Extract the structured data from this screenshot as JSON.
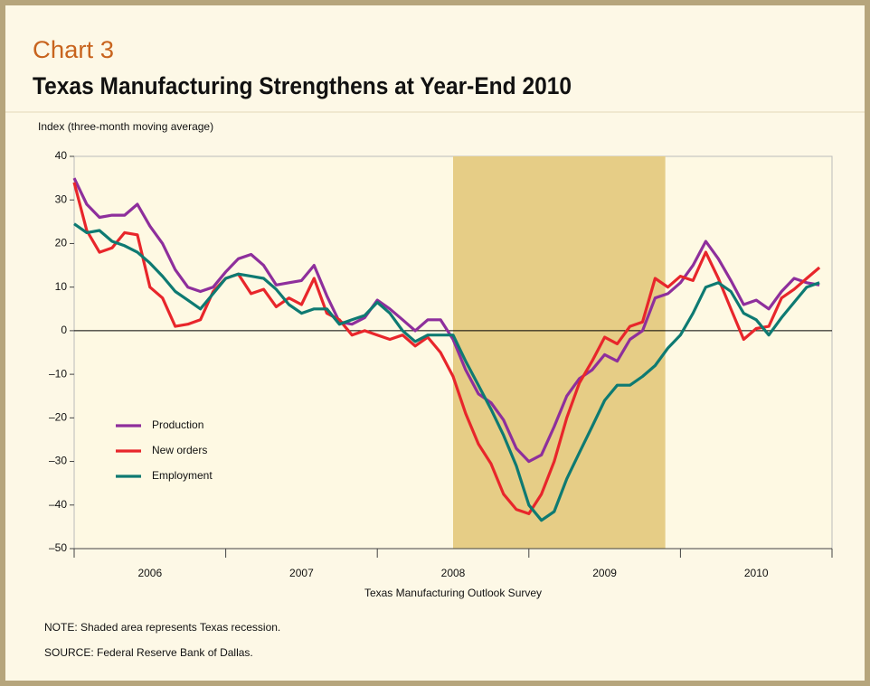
{
  "chart_data": {
    "type": "line",
    "label": "Chart 3",
    "title": "Texas Manufacturing Strengthens at Year-End 2010",
    "ylabel": "Index (three-month moving average)",
    "xlabel": "Texas Manufacturing Outlook Survey",
    "notes": [
      "NOTE: Shaded area represents Texas recession.",
      "SOURCE: Federal Reserve Bank of Dallas."
    ],
    "shaded_range": [
      2008.5,
      2009.9
    ],
    "shade_color": "#e6cd86",
    "xlim": [
      2006,
      2011
    ],
    "xticks": [
      {
        "value": 2006.5,
        "label": "2006"
      },
      {
        "value": 2007.5,
        "label": "2007"
      },
      {
        "value": 2008.5,
        "label": "2008"
      },
      {
        "value": 2009.5,
        "label": "2009"
      },
      {
        "value": 2010.5,
        "label": "2010"
      }
    ],
    "ylim": [
      -50,
      40
    ],
    "yticks": [
      {
        "value": -50,
        "label": "–50"
      },
      {
        "value": -40,
        "label": "–40"
      },
      {
        "value": -30,
        "label": "–30"
      },
      {
        "value": -20,
        "label": "–20"
      },
      {
        "value": -10,
        "label": "–10"
      },
      0,
      10,
      20,
      30,
      40
    ],
    "legend": "lower left",
    "x": [
      2006,
      2006.083,
      2006.167,
      2006.25,
      2006.333,
      2006.417,
      2006.5,
      2006.583,
      2006.667,
      2006.75,
      2006.833,
      2006.917,
      2007,
      2007.083,
      2007.167,
      2007.25,
      2007.333,
      2007.417,
      2007.5,
      2007.583,
      2007.667,
      2007.75,
      2007.833,
      2007.917,
      2008,
      2008.083,
      2008.167,
      2008.25,
      2008.333,
      2008.417,
      2008.5,
      2008.583,
      2008.667,
      2008.75,
      2008.833,
      2008.917,
      2009,
      2009.083,
      2009.167,
      2009.25,
      2009.333,
      2009.417,
      2009.5,
      2009.583,
      2009.667,
      2009.75,
      2009.833,
      2009.917,
      2010,
      2010.083,
      2010.167,
      2010.25,
      2010.333,
      2010.417,
      2010.5,
      2010.583,
      2010.667,
      2010.75,
      2010.833,
      2010.917
    ],
    "series": [
      {
        "name": "Production",
        "color": "#8e2f9c",
        "values": [
          35,
          29,
          26,
          26.5,
          26.5,
          29,
          24,
          20,
          14,
          10,
          9,
          10,
          13.5,
          16.5,
          17.5,
          15,
          10.5,
          11,
          11.5,
          15,
          8,
          2,
          1.5,
          3,
          7,
          5,
          2.5,
          0,
          2.5,
          2.5,
          -2,
          -9,
          -14.5,
          -16.5,
          -20.5,
          -27,
          -30,
          -28.5,
          -22,
          -15,
          -11,
          -9,
          -5.5,
          -7,
          -2,
          0,
          7.5,
          8.5,
          11,
          15,
          20.5,
          16.5,
          11.5,
          6,
          7,
          5,
          9,
          12,
          11,
          10.5
        ]
      },
      {
        "name": "New orders",
        "color": "#e8262b",
        "values": [
          34,
          23,
          18,
          19,
          22.5,
          22,
          10,
          7.5,
          1,
          1.5,
          2.5,
          9,
          12,
          13,
          8.5,
          9.5,
          5.5,
          7.5,
          6,
          12,
          4,
          2.5,
          -1,
          0,
          -1,
          -2,
          -1,
          -3.5,
          -1.5,
          -5,
          -10.5,
          -19,
          -26,
          -30.5,
          -37.5,
          -41,
          -42,
          -37.5,
          -30,
          -20,
          -12,
          -7,
          -1.5,
          -3,
          1,
          2,
          12,
          10,
          12.5,
          11.5,
          18,
          12,
          5,
          -2,
          0.5,
          1,
          7.5,
          9.5,
          12,
          14.5
        ]
      },
      {
        "name": "Employment",
        "color": "#0e7a72",
        "values": [
          24.5,
          22.5,
          23,
          20.5,
          19.5,
          18,
          15.5,
          12.5,
          9,
          7,
          5,
          8.5,
          12,
          13,
          12.5,
          12,
          9.5,
          6,
          4,
          5,
          5,
          1.5,
          2.5,
          3.5,
          6.5,
          4,
          0,
          -2.5,
          -1,
          -1,
          -1,
          -7,
          -12.5,
          -18,
          -24,
          -31,
          -40,
          -43.5,
          -41.5,
          -34,
          -28,
          -22,
          -16,
          -12.5,
          -12.5,
          -10.5,
          -8,
          -4,
          -1,
          4,
          10,
          11,
          9,
          4,
          2.5,
          -1,
          3,
          6.5,
          10,
          11
        ]
      }
    ]
  }
}
